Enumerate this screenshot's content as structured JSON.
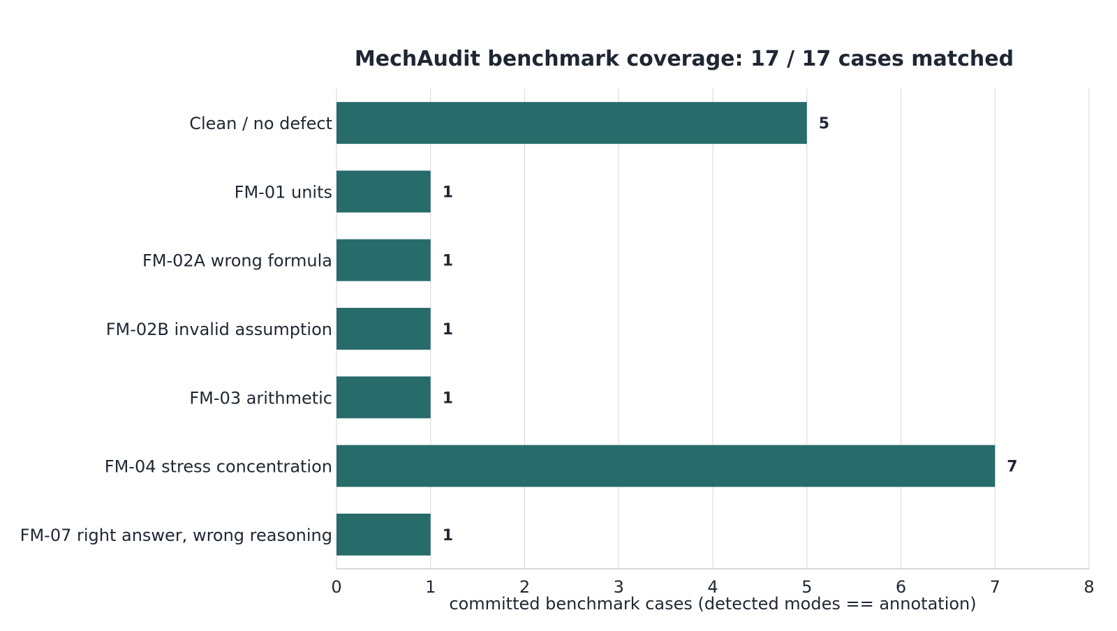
{
  "chart_data": {
    "type": "bar",
    "orientation": "horizontal",
    "title": "MechAudit benchmark coverage: 17 / 17 cases matched",
    "xlabel": "committed benchmark cases (detected modes == annotation)",
    "ylabel": "",
    "categories": [
      "Clean / no defect",
      "FM-01 units",
      "FM-02A wrong formula",
      "FM-02B invalid assumption",
      "FM-03 arithmetic",
      "FM-04 stress concentration",
      "FM-07 right answer, wrong reasoning"
    ],
    "values": [
      5,
      1,
      1,
      1,
      1,
      7,
      1
    ],
    "data_labels": [
      "5",
      "1",
      "1",
      "1",
      "1",
      "7",
      "1"
    ],
    "xlim": [
      0,
      8
    ],
    "xticks": [
      0,
      1,
      2,
      3,
      4,
      5,
      6,
      7,
      8
    ],
    "xtick_labels": [
      "0",
      "1",
      "2",
      "3",
      "4",
      "5",
      "6",
      "7",
      "8"
    ],
    "grid": "vertical",
    "legend": "none",
    "colors": {
      "bar": "#276b6a",
      "text": "#1f2733",
      "grid": "#dddddd",
      "axis": "#cccccc"
    }
  }
}
